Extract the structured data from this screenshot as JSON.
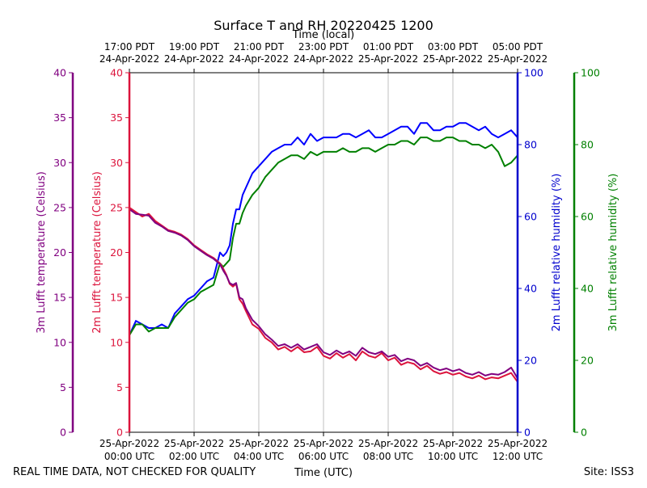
{
  "chart_data": {
    "type": "line",
    "title": "Surface T and RH 20220425 1200",
    "top_axis_label": "Time (local)",
    "xlabel": "Time (UTC)",
    "footer_left": "REAL TIME DATA, NOT CHECKED FOR QUALITY",
    "footer_right": "Site: ISS3",
    "xlim": [
      0,
      12
    ],
    "bottom_ticks": [
      {
        "x": 0,
        "line1": "25-Apr-2022",
        "line2": "00:00 UTC"
      },
      {
        "x": 2,
        "line1": "25-Apr-2022",
        "line2": "02:00 UTC"
      },
      {
        "x": 4,
        "line1": "25-Apr-2022",
        "line2": "04:00 UTC"
      },
      {
        "x": 6,
        "line1": "25-Apr-2022",
        "line2": "06:00 UTC"
      },
      {
        "x": 8,
        "line1": "25-Apr-2022",
        "line2": "08:00 UTC"
      },
      {
        "x": 10,
        "line1": "25-Apr-2022",
        "line2": "10:00 UTC"
      },
      {
        "x": 12,
        "line1": "25-Apr-2022",
        "line2": "12:00 UTC"
      }
    ],
    "top_ticks": [
      {
        "x": 0,
        "line1": "17:00 PDT",
        "line2": "24-Apr-2022"
      },
      {
        "x": 2,
        "line1": "19:00 PDT",
        "line2": "24-Apr-2022"
      },
      {
        "x": 4,
        "line1": "21:00 PDT",
        "line2": "24-Apr-2022"
      },
      {
        "x": 6,
        "line1": "23:00 PDT",
        "line2": "24-Apr-2022"
      },
      {
        "x": 8,
        "line1": "01:00 PDT",
        "line2": "25-Apr-2022"
      },
      {
        "x": 10,
        "line1": "03:00 PDT",
        "line2": "25-Apr-2022"
      },
      {
        "x": 12,
        "line1": "05:00 PDT",
        "line2": "25-Apr-2022"
      }
    ],
    "axes": [
      {
        "id": "t3m",
        "label": "3m Lufft temperature (Celsius)",
        "color": "#800080",
        "ylim": [
          0,
          40
        ],
        "ticks": [
          0,
          5,
          10,
          15,
          20,
          25,
          30,
          35,
          40
        ],
        "side": "left-outer"
      },
      {
        "id": "t2m",
        "label": "2m Lufft temperature (Celsius)",
        "color": "#dc143c",
        "ylim": [
          0,
          40
        ],
        "ticks": [
          0,
          5,
          10,
          15,
          20,
          25,
          30,
          35,
          40
        ],
        "side": "left-inner"
      },
      {
        "id": "rh2m",
        "label": "2m Lufft relative humidity (%)",
        "color": "#0000cd",
        "ylim": [
          0,
          100
        ],
        "ticks": [
          0,
          20,
          40,
          60,
          80,
          100
        ],
        "side": "right-inner"
      },
      {
        "id": "rh3m",
        "label": "3m Lufft relative humidity (%)",
        "color": "#008000",
        "ylim": [
          0,
          100
        ],
        "ticks": [
          0,
          20,
          40,
          60,
          80,
          100
        ],
        "side": "right-outer"
      }
    ],
    "series": [
      {
        "name": "2m Lufft relative humidity",
        "axis": "rh2m",
        "color": "#0000ff",
        "x": [
          0,
          0.2,
          0.4,
          0.6,
          0.8,
          1.0,
          1.2,
          1.4,
          1.6,
          1.8,
          2.0,
          2.2,
          2.4,
          2.6,
          2.8,
          2.9,
          3.0,
          3.1,
          3.2,
          3.3,
          3.4,
          3.5,
          3.6,
          3.8,
          4.0,
          4.2,
          4.4,
          4.6,
          4.8,
          5.0,
          5.2,
          5.4,
          5.6,
          5.8,
          6.0,
          6.2,
          6.4,
          6.6,
          6.8,
          7.0,
          7.2,
          7.4,
          7.6,
          7.8,
          8.0,
          8.2,
          8.4,
          8.6,
          8.8,
          9.0,
          9.2,
          9.4,
          9.6,
          9.8,
          10.0,
          10.2,
          10.4,
          10.6,
          10.8,
          11.0,
          11.2,
          11.4,
          11.6,
          11.8,
          12.0
        ],
        "values": [
          27,
          31,
          30,
          29,
          29,
          30,
          29,
          33,
          35,
          37,
          38,
          40,
          42,
          43,
          50,
          49,
          50,
          52,
          58,
          62,
          62,
          66,
          68,
          72,
          74,
          76,
          78,
          79,
          80,
          80,
          82,
          80,
          83,
          81,
          82,
          82,
          82,
          83,
          83,
          82,
          83,
          84,
          82,
          82,
          83,
          84,
          85,
          85,
          83,
          86,
          86,
          84,
          84,
          85,
          85,
          86,
          86,
          85,
          84,
          85,
          83,
          82,
          83,
          84,
          82
        ]
      },
      {
        "name": "3m Lufft relative humidity",
        "axis": "rh3m",
        "color": "#008000",
        "x": [
          0,
          0.2,
          0.4,
          0.6,
          0.8,
          1.0,
          1.2,
          1.4,
          1.6,
          1.8,
          2.0,
          2.2,
          2.4,
          2.6,
          2.8,
          2.9,
          3.0,
          3.1,
          3.2,
          3.3,
          3.4,
          3.5,
          3.6,
          3.8,
          4.0,
          4.2,
          4.4,
          4.6,
          4.8,
          5.0,
          5.2,
          5.4,
          5.6,
          5.8,
          6.0,
          6.2,
          6.4,
          6.6,
          6.8,
          7.0,
          7.2,
          7.4,
          7.6,
          7.8,
          8.0,
          8.2,
          8.4,
          8.6,
          8.8,
          9.0,
          9.2,
          9.4,
          9.6,
          9.8,
          10.0,
          10.2,
          10.4,
          10.6,
          10.8,
          11.0,
          11.2,
          11.4,
          11.6,
          11.8,
          12.0
        ],
        "values": [
          27,
          30,
          30,
          28,
          29,
          29,
          29,
          32,
          34,
          36,
          37,
          39,
          40,
          41,
          47,
          46,
          47,
          48,
          54,
          58,
          58,
          61,
          63,
          66,
          68,
          71,
          73,
          75,
          76,
          77,
          77,
          76,
          78,
          77,
          78,
          78,
          78,
          79,
          78,
          78,
          79,
          79,
          78,
          79,
          80,
          80,
          81,
          81,
          80,
          82,
          82,
          81,
          81,
          82,
          82,
          81,
          81,
          80,
          80,
          79,
          80,
          78,
          74,
          75,
          77
        ]
      },
      {
        "name": "2m Lufft temperature",
        "axis": "t2m",
        "color": "#dc143c",
        "x": [
          0,
          0.2,
          0.4,
          0.6,
          0.8,
          1.0,
          1.2,
          1.4,
          1.6,
          1.8,
          2.0,
          2.2,
          2.4,
          2.6,
          2.8,
          2.9,
          3.0,
          3.1,
          3.2,
          3.3,
          3.4,
          3.5,
          3.6,
          3.8,
          4.0,
          4.2,
          4.4,
          4.6,
          4.8,
          5.0,
          5.2,
          5.4,
          5.6,
          5.8,
          6.0,
          6.2,
          6.4,
          6.6,
          6.8,
          7.0,
          7.2,
          7.4,
          7.6,
          7.8,
          8.0,
          8.2,
          8.4,
          8.6,
          8.8,
          9.0,
          9.2,
          9.4,
          9.6,
          9.8,
          10.0,
          10.2,
          10.4,
          10.6,
          10.8,
          11.0,
          11.2,
          11.4,
          11.6,
          11.8,
          12.0
        ],
        "values": [
          25,
          24.5,
          24,
          24.3,
          23.5,
          23,
          22.5,
          22.3,
          22,
          21.5,
          20.8,
          20.3,
          19.8,
          19.4,
          18.8,
          18.2,
          17.5,
          16.5,
          16.2,
          16.5,
          14.8,
          14.3,
          13.5,
          12.0,
          11.5,
          10.5,
          10.0,
          9.2,
          9.5,
          9.0,
          9.5,
          8.9,
          9.0,
          9.5,
          8.5,
          8.2,
          8.8,
          8.3,
          8.7,
          8.0,
          9.0,
          8.5,
          8.3,
          8.8,
          8.0,
          8.3,
          7.5,
          7.8,
          7.6,
          7.0,
          7.4,
          6.8,
          6.5,
          6.7,
          6.4,
          6.6,
          6.2,
          6.0,
          6.3,
          5.9,
          6.1,
          6.0,
          6.3,
          6.6,
          5.6
        ]
      },
      {
        "name": "3m Lufft temperature",
        "axis": "t3m",
        "color": "#800080",
        "x": [
          0,
          0.2,
          0.4,
          0.6,
          0.8,
          1.0,
          1.2,
          1.4,
          1.6,
          1.8,
          2.0,
          2.2,
          2.4,
          2.6,
          2.8,
          2.9,
          3.0,
          3.1,
          3.2,
          3.3,
          3.4,
          3.5,
          3.6,
          3.8,
          4.0,
          4.2,
          4.4,
          4.6,
          4.8,
          5.0,
          5.2,
          5.4,
          5.6,
          5.8,
          6.0,
          6.2,
          6.4,
          6.6,
          6.8,
          7.0,
          7.2,
          7.4,
          7.6,
          7.8,
          8.0,
          8.2,
          8.4,
          8.6,
          8.8,
          9.0,
          9.2,
          9.4,
          9.6,
          9.8,
          10.0,
          10.2,
          10.4,
          10.6,
          10.8,
          11.0,
          11.2,
          11.4,
          11.6,
          11.8,
          12.0
        ],
        "values": [
          24.8,
          24.3,
          24.2,
          24.1,
          23.3,
          22.9,
          22.4,
          22.2,
          21.9,
          21.4,
          20.7,
          20.2,
          19.7,
          19.3,
          18.7,
          18.0,
          17.4,
          16.6,
          16.4,
          16.6,
          15.0,
          14.8,
          13.8,
          12.5,
          11.8,
          10.9,
          10.3,
          9.6,
          9.8,
          9.4,
          9.8,
          9.2,
          9.5,
          9.8,
          8.9,
          8.6,
          9.1,
          8.7,
          9.0,
          8.5,
          9.4,
          8.9,
          8.7,
          9.0,
          8.4,
          8.6,
          7.9,
          8.2,
          8.0,
          7.4,
          7.7,
          7.2,
          6.9,
          7.1,
          6.8,
          7.0,
          6.6,
          6.4,
          6.7,
          6.3,
          6.5,
          6.4,
          6.7,
          7.2,
          6.0
        ]
      }
    ]
  }
}
